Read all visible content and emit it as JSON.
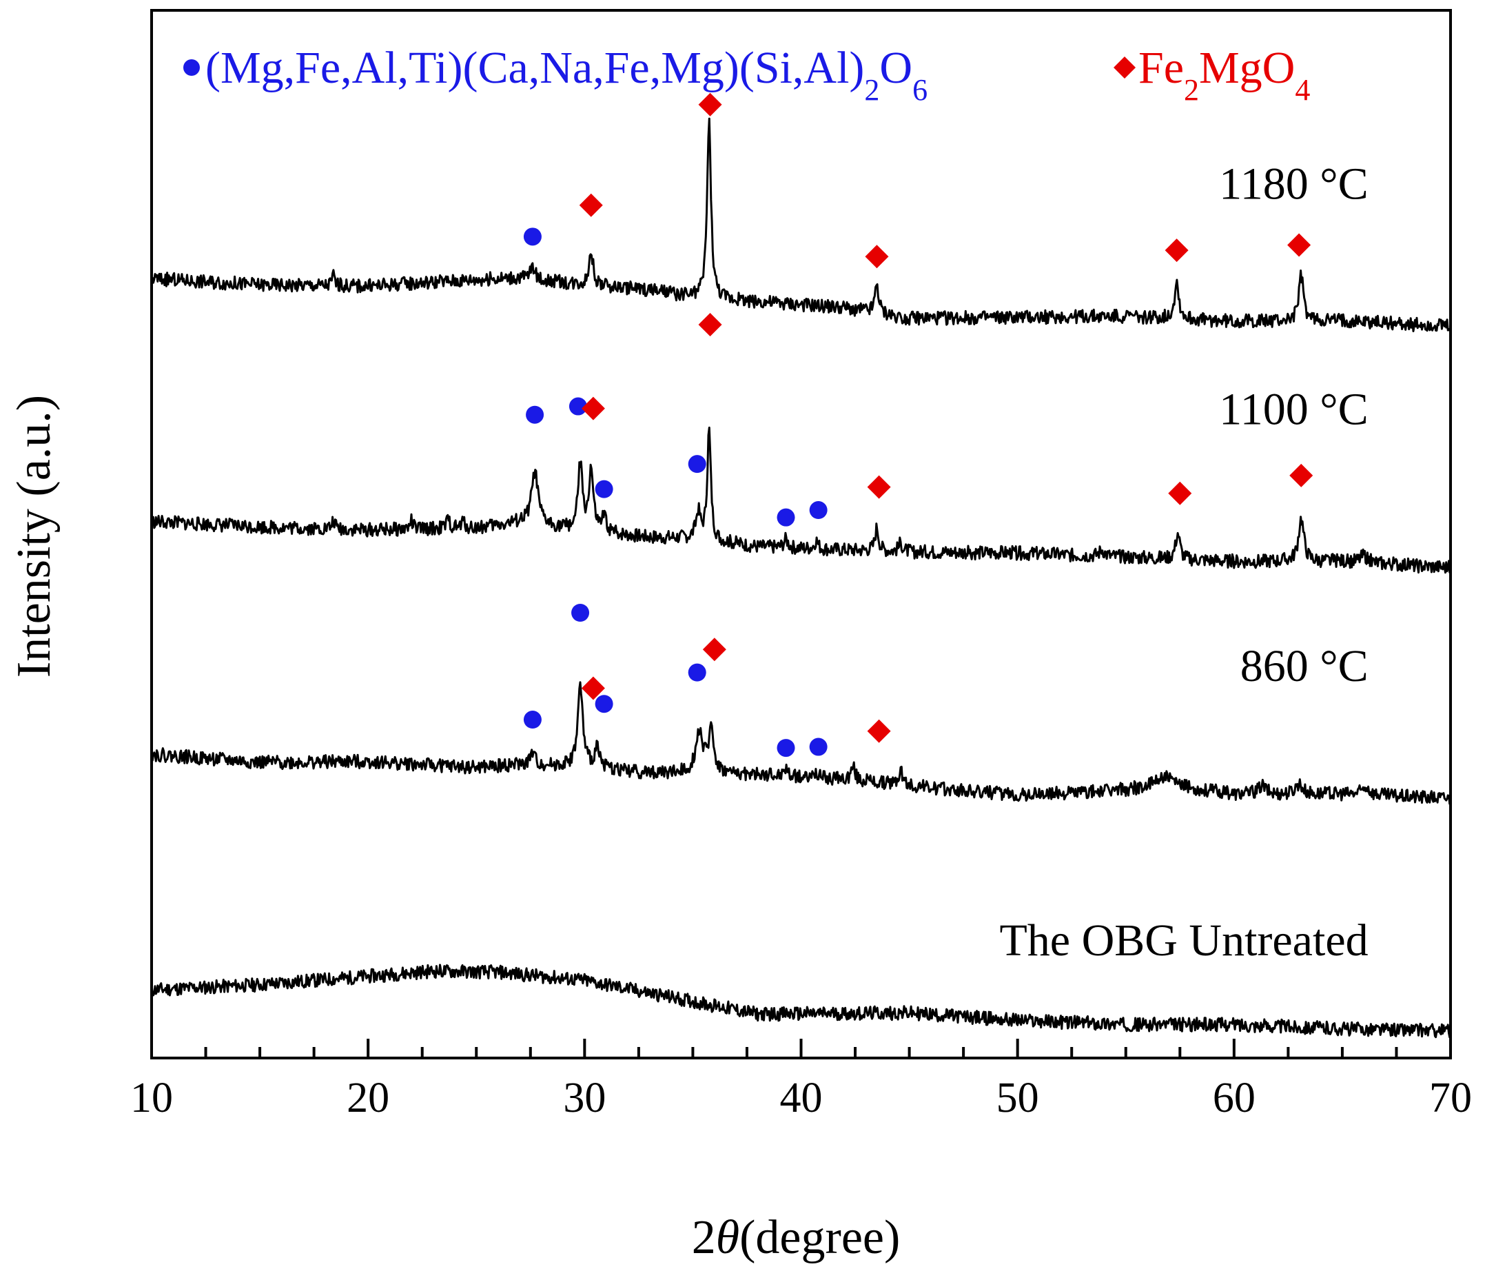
{
  "chart_data": {
    "type": "line",
    "subtype": "stacked XRD patterns",
    "xlabel_prefix": "2",
    "xlabel_symbol": "θ",
    "xlabel_suffix": "(degree)",
    "ylabel": "Intensity (a.u.)",
    "xlim": [
      10,
      70
    ],
    "x_ticks": [
      10,
      20,
      30,
      40,
      50,
      60,
      70
    ],
    "ylim": [
      0,
      100
    ],
    "grid": false,
    "legend": [
      {
        "marker": "circle",
        "color": "#1a1ae6",
        "parts": [
          "(Mg,Fe,Al,Ti)(Ca,Na,Fe,Mg)(Si,Al)",
          "2",
          "O",
          "6"
        ]
      },
      {
        "marker": "diamond",
        "color": "#e60000",
        "parts": [
          "Fe",
          "2",
          "MgO",
          "4"
        ]
      }
    ],
    "legend_placement": "top",
    "series": [
      {
        "name": "The OBG Untreated",
        "baseline": [
          [
            10,
            6.5
          ],
          [
            15,
            7.0
          ],
          [
            20,
            7.8
          ],
          [
            23,
            8.3
          ],
          [
            26,
            8.2
          ],
          [
            30,
            7.4
          ],
          [
            34,
            5.8
          ],
          [
            38,
            4.2
          ],
          [
            45,
            4.3
          ],
          [
            50,
            3.6
          ],
          [
            55,
            3.2
          ],
          [
            60,
            3.2
          ],
          [
            65,
            2.8
          ],
          [
            70,
            2.6
          ]
        ],
        "peaks": [],
        "seed": 11
      },
      {
        "name": "860 °C",
        "baseline": [
          [
            10,
            29.0
          ],
          [
            15,
            28.2
          ],
          [
            20,
            28.3
          ],
          [
            25,
            27.7
          ],
          [
            27,
            28.0
          ],
          [
            30,
            27.8
          ],
          [
            33,
            27.2
          ],
          [
            35,
            27.2
          ],
          [
            38,
            27.0
          ],
          [
            42,
            26.6
          ],
          [
            46,
            25.8
          ],
          [
            50,
            25.1
          ],
          [
            55,
            25.6
          ],
          [
            57,
            26.0
          ],
          [
            60,
            25.2
          ],
          [
            65,
            25.2
          ],
          [
            70,
            24.8
          ]
        ],
        "peaks": [
          [
            27.6,
            1.2,
            0.12
          ],
          [
            29.8,
            7.6,
            0.14
          ],
          [
            30.6,
            2.2,
            0.12
          ],
          [
            35.3,
            4.0,
            0.2
          ],
          [
            35.85,
            4.2,
            0.14
          ],
          [
            39.3,
            0.8,
            0.1
          ],
          [
            40.7,
            0.6,
            0.1
          ],
          [
            42.4,
            1.3,
            0.12
          ],
          [
            44.6,
            1.5,
            0.1
          ],
          [
            56.7,
            1.0,
            0.4
          ],
          [
            61.3,
            0.8,
            0.2
          ],
          [
            63.0,
            1.0,
            0.2
          ],
          [
            66.1,
            0.8,
            0.2
          ]
        ],
        "seed": 22
      },
      {
        "name": "1100 °C",
        "baseline": [
          [
            10,
            51.2
          ],
          [
            15,
            50.7
          ],
          [
            20,
            50.4
          ],
          [
            25,
            50.6
          ],
          [
            27,
            51.1
          ],
          [
            30,
            50.3
          ],
          [
            33,
            49.7
          ],
          [
            35,
            49.6
          ],
          [
            38,
            48.8
          ],
          [
            42,
            48.5
          ],
          [
            45,
            48.3
          ],
          [
            50,
            48.2
          ],
          [
            55,
            47.8
          ],
          [
            60,
            47.4
          ],
          [
            65,
            47.4
          ],
          [
            70,
            46.8
          ]
        ],
        "peaks": [
          [
            18.4,
            0.8,
            0.08
          ],
          [
            22.0,
            0.8,
            0.08
          ],
          [
            23.7,
            0.8,
            0.1
          ],
          [
            24.4,
            0.6,
            0.1
          ],
          [
            27.7,
            5.0,
            0.18
          ],
          [
            29.8,
            6.2,
            0.12
          ],
          [
            30.3,
            5.8,
            0.12
          ],
          [
            30.9,
            1.4,
            0.12
          ],
          [
            35.25,
            2.5,
            0.12
          ],
          [
            35.75,
            10.5,
            0.1
          ],
          [
            39.3,
            0.8,
            0.12
          ],
          [
            40.7,
            0.8,
            0.1
          ],
          [
            43.5,
            2.2,
            0.1
          ],
          [
            44.6,
            0.8,
            0.1
          ],
          [
            53.9,
            0.6,
            0.15
          ],
          [
            57.4,
            2.5,
            0.12
          ],
          [
            63.1,
            4.1,
            0.15
          ],
          [
            66.0,
            0.7,
            0.2
          ]
        ],
        "seed": 33
      },
      {
        "name": "1180 °C",
        "baseline": [
          [
            10,
            74.4
          ],
          [
            15,
            73.8
          ],
          [
            20,
            73.7
          ],
          [
            25,
            74.3
          ],
          [
            27,
            74.5
          ],
          [
            30,
            73.8
          ],
          [
            33,
            73.3
          ],
          [
            35,
            72.6
          ],
          [
            38,
            72.2
          ],
          [
            42,
            71.6
          ],
          [
            45,
            70.6
          ],
          [
            50,
            70.7
          ],
          [
            55,
            70.8
          ],
          [
            60,
            70.3
          ],
          [
            65,
            70.4
          ],
          [
            70,
            69.8
          ]
        ],
        "peaks": [
          [
            18.4,
            1.0,
            0.08
          ],
          [
            27.6,
            1.3,
            0.12
          ],
          [
            30.3,
            3.2,
            0.12
          ],
          [
            35.75,
            16.8,
            0.11
          ],
          [
            43.5,
            2.8,
            0.1
          ],
          [
            57.35,
            3.5,
            0.12
          ],
          [
            63.1,
            4.3,
            0.13
          ]
        ],
        "seed": 44
      }
    ],
    "trace_labels": [
      {
        "series": "1180 °C",
        "text": "1180 °C",
        "x": 66.2,
        "y": 82.0
      },
      {
        "series": "1100 °C",
        "text": "1100 °C",
        "x": 66.2,
        "y": 60.5
      },
      {
        "series": "860 °C",
        "text": "860 °C",
        "x": 66.2,
        "y": 36.0
      },
      {
        "series": "The OBG Untreated",
        "text": "The OBG Untreated",
        "x": 66.2,
        "y": 9.8
      }
    ],
    "markers": [
      {
        "type": "circle",
        "x": 27.6,
        "y": 78.4
      },
      {
        "type": "diamond",
        "x": 30.3,
        "y": 81.4
      },
      {
        "type": "diamond",
        "x": 35.8,
        "y": 91.0
      },
      {
        "type": "diamond",
        "x": 43.5,
        "y": 76.5
      },
      {
        "type": "diamond",
        "x": 57.35,
        "y": 77.1
      },
      {
        "type": "diamond",
        "x": 63.0,
        "y": 77.6
      },
      {
        "type": "circle",
        "x": 27.7,
        "y": 61.4
      },
      {
        "type": "circle",
        "x": 29.7,
        "y": 62.2
      },
      {
        "type": "diamond",
        "x": 30.4,
        "y": 62.0
      },
      {
        "type": "circle",
        "x": 30.9,
        "y": 54.3
      },
      {
        "type": "circle",
        "x": 35.2,
        "y": 56.7
      },
      {
        "type": "diamond",
        "x": 35.8,
        "y": 70.0
      },
      {
        "type": "circle",
        "x": 39.3,
        "y": 51.6
      },
      {
        "type": "circle",
        "x": 40.8,
        "y": 52.3
      },
      {
        "type": "diamond",
        "x": 43.6,
        "y": 54.5
      },
      {
        "type": "diamond",
        "x": 57.5,
        "y": 53.9
      },
      {
        "type": "diamond",
        "x": 63.1,
        "y": 55.6
      },
      {
        "type": "circle",
        "x": 29.8,
        "y": 42.5
      },
      {
        "type": "diamond",
        "x": 36.0,
        "y": 39.0
      },
      {
        "type": "circle",
        "x": 35.2,
        "y": 36.8
      },
      {
        "type": "diamond",
        "x": 30.4,
        "y": 35.3
      },
      {
        "type": "circle",
        "x": 30.9,
        "y": 33.8
      },
      {
        "type": "circle",
        "x": 27.6,
        "y": 32.3
      },
      {
        "type": "circle",
        "x": 39.3,
        "y": 29.6
      },
      {
        "type": "circle",
        "x": 40.8,
        "y": 29.7
      },
      {
        "type": "diamond",
        "x": 43.6,
        "y": 31.2
      }
    ]
  }
}
